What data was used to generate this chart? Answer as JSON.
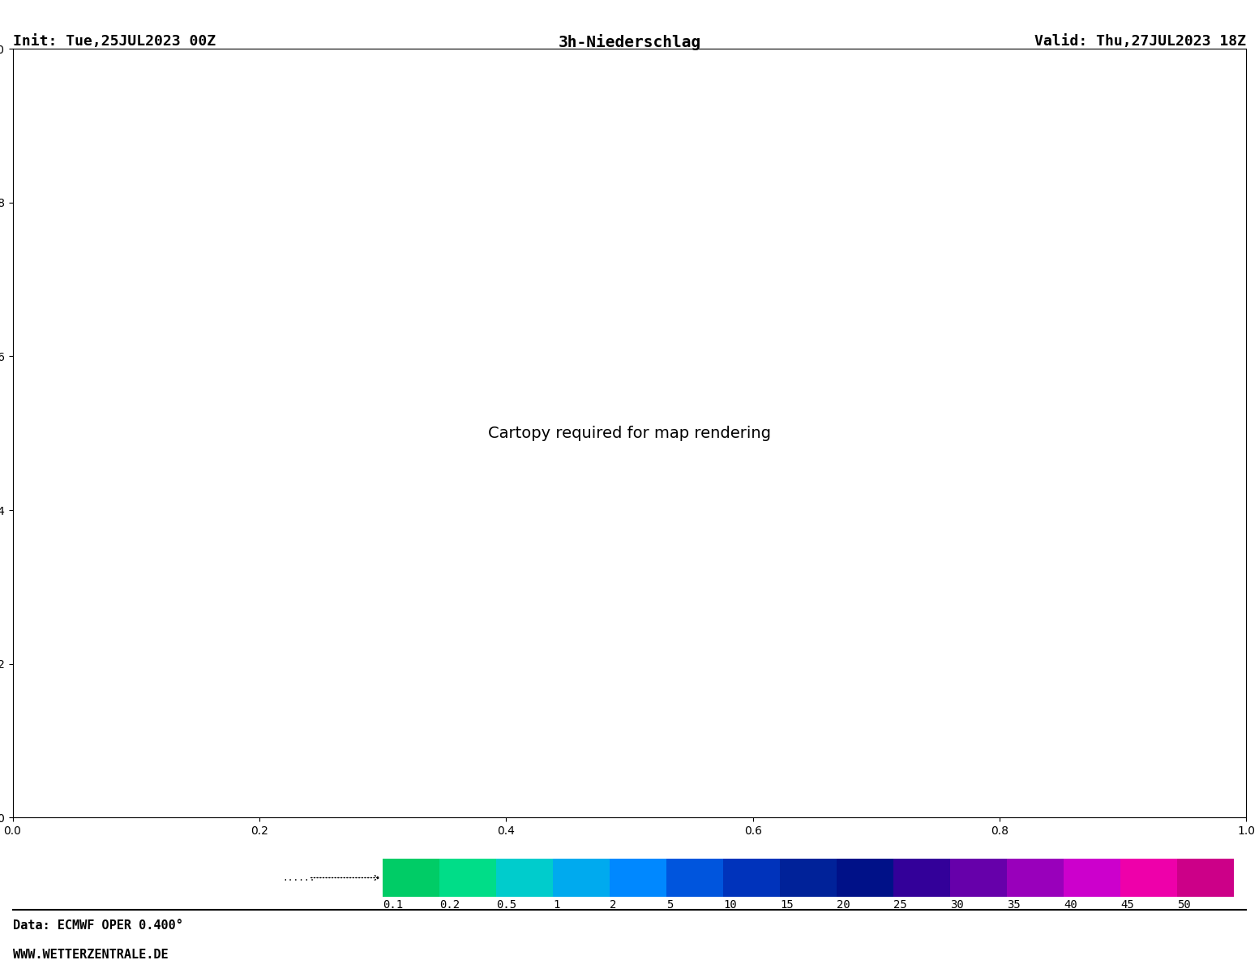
{
  "title_center": "3h-Niederschlag",
  "title_left": "Init: Tue,25JUL2023 00Z",
  "title_right": "Valid: Thu,27JUL2023 18Z",
  "footer_left1": "Data: ECMWF OPER 0.400°",
  "footer_left2": "WWW.WETTERZENTRALE.DE",
  "colorbar_labels": [
    "0.1",
    "0.2",
    "0.5",
    "1",
    "2",
    "5",
    "10",
    "15",
    "20",
    "25",
    "30",
    "35",
    "40",
    "45",
    "50"
  ],
  "colorbar_colors": [
    "#00CC66",
    "#00DD88",
    "#00CCCC",
    "#00AAEE",
    "#0088FF",
    "#0055DD",
    "#0033BB",
    "#002299",
    "#001188",
    "#330099",
    "#6600AA",
    "#9900BB",
    "#CC00CC",
    "#EE00AA",
    "#CC0088"
  ],
  "background_color": "#FFFFFF",
  "map_background": "#FFFFFF",
  "border_color": "#888888",
  "coastline_color": "#AAAAAA",
  "title_fontsize": 13,
  "footer_fontsize": 11,
  "colorbar_label_fontsize": 10,
  "fig_width": 15.53,
  "fig_height": 12.0,
  "dpi": 100
}
